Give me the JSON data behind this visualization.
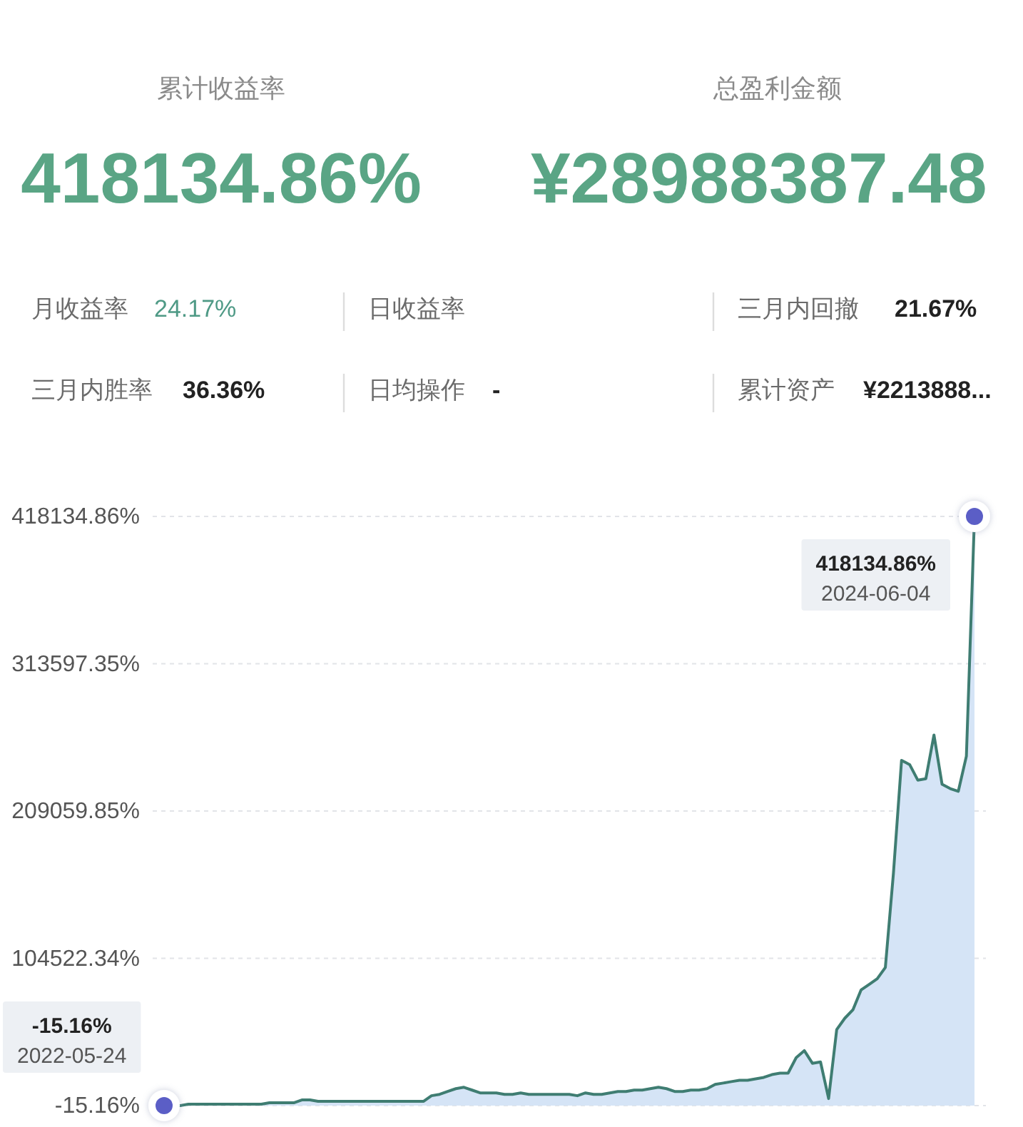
{
  "chart_data": [
    {
      "type": "other",
      "annotations": [
        "累计收益率",
        "418134.86%",
        "总盈利金额",
        "¥28988387.48",
        "月收益率",
        "24.17%",
        "日收益率",
        "三月内回撤",
        "21.67%",
        "三月内胜率",
        "36.36%",
        "日均操作",
        "-",
        "累计资产",
        "¥2213888..."
      ]
    },
    {
      "type": "area",
      "categories": [
        null,
        null,
        null,
        null,
        null,
        null,
        null,
        null,
        null,
        null,
        null,
        null,
        null,
        null,
        null,
        null,
        null,
        null,
        null,
        null,
        null,
        null,
        null,
        null,
        null,
        null,
        null,
        null,
        null,
        null,
        null,
        null,
        null,
        null,
        null,
        null,
        null,
        null,
        null,
        null,
        null,
        null,
        null,
        null,
        null,
        null,
        null,
        null,
        null,
        null,
        null,
        null,
        null,
        null,
        null,
        null,
        null,
        null,
        null,
        null,
        null,
        null,
        null,
        null,
        null,
        null,
        null,
        null,
        null,
        null,
        null,
        null,
        null,
        null,
        null,
        null,
        null,
        null,
        null,
        null,
        null,
        null,
        null,
        null,
        null,
        null,
        null,
        null,
        null,
        null,
        null,
        null,
        null,
        null,
        null,
        null,
        null,
        null,
        null,
        null,
        null
      ],
      "series": [
        {
          "color": "#3f7d72",
          "values": [
            -15.16,
            0,
            0,
            1000,
            1000,
            1000,
            1000,
            1000,
            1000,
            1000,
            1000,
            1000,
            1000,
            2000,
            2000,
            2000,
            2000,
            4000,
            4000,
            3000,
            3000,
            3000,
            3000,
            3000,
            3000,
            3000,
            3000,
            3000,
            3000,
            3000,
            3000,
            3000,
            3000,
            7000,
            8000,
            10000,
            12000,
            13000,
            11000,
            9000,
            9000,
            9000,
            8000,
            8000,
            9000,
            8000,
            8000,
            8000,
            8000,
            8000,
            8000,
            7000,
            9000,
            8000,
            8000,
            9000,
            10000,
            10000,
            11000,
            11000,
            12000,
            13000,
            12000,
            10000,
            10000,
            11000,
            11000,
            12000,
            15000,
            16000,
            17000,
            18000,
            18000,
            19000,
            20000,
            22000,
            23000,
            23000,
            34000,
            39000,
            30000,
            31000,
            5000,
            54000,
            62000,
            68000,
            82000,
            86000,
            90000,
            98000,
            165000,
            245000,
            242000,
            231000,
            232000,
            263000,
            228000,
            225000,
            223000,
            248000,
            418134.86
          ]
        }
      ],
      "ylim": [
        -15.16,
        418134.86
      ],
      "yticks": [
        {
          "value": -15.16,
          "label": "-15.16%"
        },
        {
          "value": 104522.34,
          "label": "104522.34%"
        },
        {
          "value": 209059.85,
          "label": "209059.85%"
        },
        {
          "value": 313597.35,
          "label": "313597.35%"
        },
        {
          "value": 418134.86,
          "label": "418134.86%"
        }
      ],
      "grid": "y",
      "annotations": [
        "418134.86%",
        "2024-06-04",
        "-15.16%",
        "2022-05-24"
      ]
    }
  ]
}
